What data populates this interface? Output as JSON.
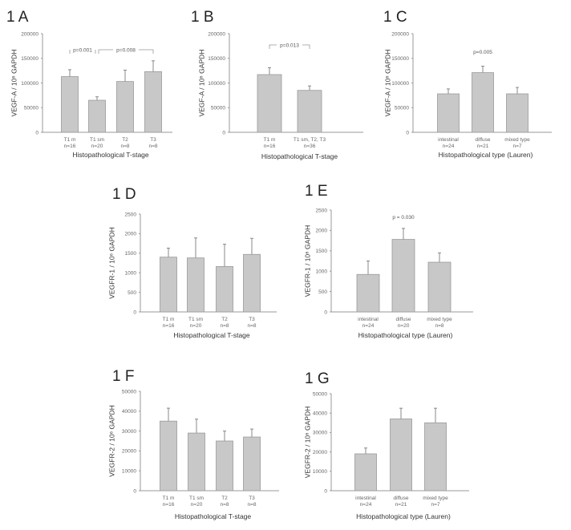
{
  "chart_data": [
    {
      "panel_label": "1 A",
      "type": "bar",
      "ylabel": "VEGF-A / 10⁶ GAPDH",
      "xlabel": "Histopathological T-stage",
      "categories": [
        [
          "T1 m",
          "n=16"
        ],
        [
          "T1 sm",
          "n=20"
        ],
        [
          "T2",
          "n=8"
        ],
        [
          "T3",
          "n=8"
        ]
      ],
      "values": [
        113000,
        65000,
        103000,
        123000
      ],
      "error_upper": [
        127000,
        72000,
        126000,
        145000
      ],
      "ylim": [
        0,
        200000
      ],
      "yticks": [
        "0",
        "50000",
        "100000",
        "150000",
        "200000"
      ],
      "annotations": [
        {
          "text": "p=0.001",
          "from": 0,
          "to": 1
        },
        {
          "text": "p=0.008",
          "from": 1,
          "to": 3
        }
      ],
      "bar_color": "#c8c8c8"
    },
    {
      "panel_label": "1 B",
      "type": "bar",
      "ylabel": "VEGF-A / 10⁶ GAPDH",
      "xlabel": "Histopathological T-stage",
      "categories": [
        [
          "T1 m",
          "n=16"
        ],
        [
          "T1 sm, T2, T3",
          "n=36"
        ]
      ],
      "values": [
        117000,
        85000
      ],
      "error_upper": [
        131000,
        94000
      ],
      "ylim": [
        0,
        200000
      ],
      "yticks": [
        "0",
        "50000",
        "100000",
        "150000",
        "200000"
      ],
      "annotations": [
        {
          "text": "p=0.013",
          "from": 0,
          "to": 1
        }
      ],
      "bar_color": "#c8c8c8"
    },
    {
      "panel_label": "1 C",
      "type": "bar",
      "ylabel": "VEGF-A / 10⁶ GAPDH",
      "xlabel": "Histopathological type (Lauren)",
      "categories": [
        [
          "intestinal",
          "n=24"
        ],
        [
          "diffuse",
          "n=21"
        ],
        [
          "mixed type",
          "n=7"
        ]
      ],
      "values": [
        78000,
        121000,
        78000
      ],
      "error_upper": [
        88000,
        134000,
        91000
      ],
      "ylim": [
        0,
        200000
      ],
      "yticks": [
        "0",
        "50000",
        "100000",
        "150000",
        "200000"
      ],
      "annotations": [
        {
          "text": "p=0.005",
          "over": 1
        }
      ],
      "bar_color": "#c8c8c8"
    },
    {
      "panel_label": "1 D",
      "type": "bar",
      "ylabel": "VEGFR-1 / 10⁶ GAPDH",
      "xlabel": "Histopathological T-stage",
      "categories": [
        [
          "T1 m",
          "n=16"
        ],
        [
          "T1 sm",
          "n=20"
        ],
        [
          "T2",
          "n=8"
        ],
        [
          "T3",
          "n=8"
        ]
      ],
      "values": [
        1400,
        1380,
        1160,
        1470
      ],
      "error_upper": [
        1630,
        1890,
        1730,
        1880
      ],
      "ylim": [
        0,
        2500
      ],
      "yticks": [
        "0",
        "500",
        "1000",
        "1500",
        "2000",
        "2500"
      ],
      "annotations": [],
      "bar_color": "#c8c8c8"
    },
    {
      "panel_label": "1 E",
      "type": "bar",
      "ylabel": "VEGFR-1 / 10⁶ GAPDH",
      "xlabel": "Histopathological type (Lauren)",
      "categories": [
        [
          "intestinal",
          "n=24"
        ],
        [
          "diffuse",
          "n=20"
        ],
        [
          "mixed type",
          "n=8"
        ]
      ],
      "values": [
        920,
        1780,
        1220
      ],
      "error_upper": [
        1250,
        2050,
        1450
      ],
      "ylim": [
        0,
        2500
      ],
      "yticks": [
        "0",
        "500",
        "1000",
        "1500",
        "2000",
        "2500"
      ],
      "annotations": [
        {
          "text": "p = 0.030",
          "over": 1
        }
      ],
      "bar_color": "#c8c8c8"
    },
    {
      "panel_label": "1 F",
      "type": "bar",
      "ylabel": "VEGFR-2 / 10⁶ GAPDH",
      "xlabel": "Histopathological T-stage",
      "categories": [
        [
          "T1 m",
          "n=16"
        ],
        [
          "T1 sm",
          "n=20"
        ],
        [
          "T2",
          "n=8"
        ],
        [
          "T3",
          "n=8"
        ]
      ],
      "values": [
        35000,
        29000,
        25000,
        27000
      ],
      "error_upper": [
        41500,
        36000,
        30000,
        31000
      ],
      "ylim": [
        0,
        50000
      ],
      "yticks": [
        "0",
        "10000",
        "20000",
        "30000",
        "40000",
        "50000"
      ],
      "annotations": [],
      "bar_color": "#c8c8c8"
    },
    {
      "panel_label": "1 G",
      "type": "bar",
      "ylabel": "VEGFR-2 / 10⁶ GAPDH",
      "xlabel": "Histopathological type (Lauren)",
      "categories": [
        [
          "intestinal",
          "n=24"
        ],
        [
          "diffuse",
          "n=21"
        ],
        [
          "mixed type",
          "n=7"
        ]
      ],
      "values": [
        19000,
        37000,
        35000
      ],
      "error_upper": [
        22000,
        42500,
        42500
      ],
      "ylim": [
        0,
        50000
      ],
      "yticks": [
        "0",
        "10000",
        "20000",
        "30000",
        "40000",
        "50000"
      ],
      "annotations": [],
      "bar_color": "#c8c8c8"
    }
  ]
}
